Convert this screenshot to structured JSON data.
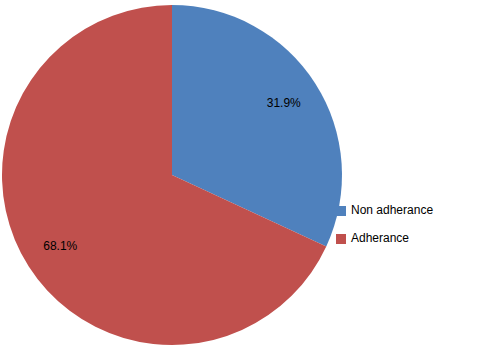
{
  "chart_data": {
    "type": "pie",
    "categories": [
      "Non adherance",
      "Adherance"
    ],
    "values": [
      31.9,
      68.1
    ],
    "value_labels": [
      "31.9%",
      "68.1%"
    ],
    "colors": [
      "#4f81bd",
      "#c0504d"
    ],
    "data_labels": true,
    "legend": "right"
  }
}
